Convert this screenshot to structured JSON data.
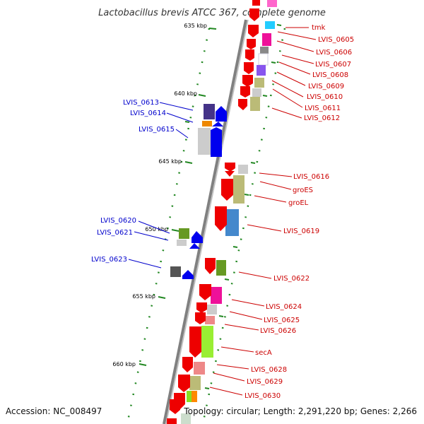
{
  "title": "Lactobacillus brevis ATCC 367, complete genome",
  "footer": {
    "accession": "Accession: NC_008497",
    "topology": "Topology: circular; Length: 2,291,220 bp; Genes: 2,266"
  },
  "scale_labels": [
    "635 kbp",
    "640 kbp",
    "645 kbp",
    "650 kbp",
    "655 kbp",
    "660 kbp"
  ],
  "left_genes": [
    "LVIS_0613",
    "LVIS_0614",
    "LVIS_0615",
    "LVIS_0620",
    "LVIS_0621",
    "LVIS_0623"
  ],
  "right_genes": [
    "tmk",
    "LVIS_0605",
    "LVIS_0606",
    "LVIS_0607",
    "LVIS_0608",
    "LVIS_0609",
    "LVIS_0610",
    "LVIS_0611",
    "LVIS_0612",
    "LVIS_0616",
    "groES",
    "groEL",
    "LVIS_0619",
    "LVIS_0622",
    "LVIS_0624",
    "LVIS_0625",
    "LVIS_0626",
    "secA",
    "LVIS_0628",
    "LVIS_0629",
    "LVIS_0630"
  ],
  "colors": {
    "backbone": "#808080",
    "forward_strand": "#ee0000",
    "reverse_strand": "#0000ee",
    "tick": "#228822",
    "left_label": "#0000cc",
    "right_label": "#cc0000"
  }
}
